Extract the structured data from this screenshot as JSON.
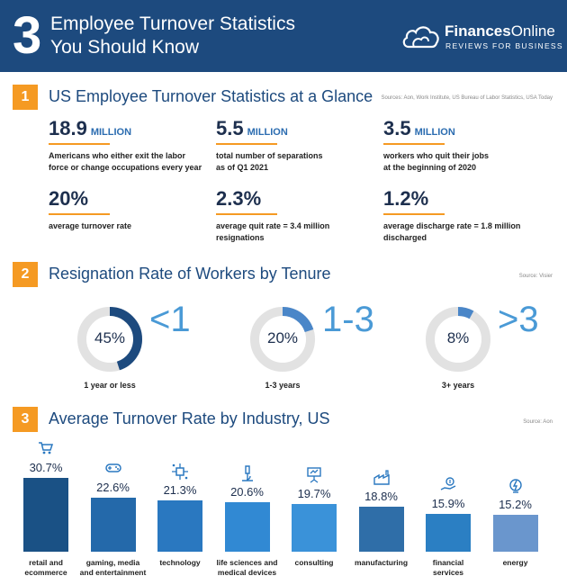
{
  "header": {
    "number": "3",
    "title_line1": "Employee Turnover Statistics",
    "title_line2": "You Should Know",
    "logo_name_bold": "Finances",
    "logo_name_rest": "Online",
    "logo_sub": "REVIEWS FOR BUSINESS"
  },
  "section1": {
    "number": "1",
    "title": "US Employee Turnover Statistics at a Glance",
    "source": "Sources: Aon, Work Institute, US Bureau of Labor Statistics, USA Today",
    "stats": [
      {
        "big": "18.9",
        "unit": "MILLION",
        "desc1": "Americans who either exit the labor",
        "desc2": "force or change occupations every year"
      },
      {
        "big": "5.5",
        "unit": "MILLION",
        "desc1": "total number of separations",
        "desc2": "as of Q1 2021"
      },
      {
        "big": "3.5",
        "unit": "MILLION",
        "desc1": "workers who quit their jobs",
        "desc2": "at the beginning of 2020"
      },
      {
        "big": "20%",
        "unit": "",
        "desc1": "average turnover rate",
        "desc2": ""
      },
      {
        "big": "2.3%",
        "unit": "",
        "desc1": "average quit rate = 3.4 million",
        "desc2": "resignations"
      },
      {
        "big": "1.2%",
        "unit": "",
        "desc1": "average discharge rate = 1.8 million",
        "desc2": "discharged"
      }
    ]
  },
  "section2": {
    "number": "2",
    "title": "Resignation Rate of Workers by Tenure",
    "source": "Source: Visier",
    "donuts": [
      {
        "pct": "45%",
        "value": 0.45,
        "big": "<1",
        "label": "1 year or less"
      },
      {
        "pct": "20%",
        "value": 0.2,
        "big": "1-3",
        "label": "1-3 years"
      },
      {
        "pct": "8%",
        "value": 0.08,
        "big": ">3",
        "label": "3+ years"
      }
    ],
    "colors": {
      "track": "#e2e2e2",
      "arc": "#1d4a7e",
      "arc_light": "#4a86c8"
    }
  },
  "section3": {
    "number": "3",
    "title": "Average Turnover Rate by Industry, US",
    "source": "Source: Aon"
  },
  "chart_data": {
    "type": "bar",
    "title": "Average Turnover Rate by Industry, US",
    "categories": [
      [
        "retail and",
        "ecommerce"
      ],
      [
        "gaming, media",
        "and entertainment"
      ],
      [
        "technology",
        ""
      ],
      [
        "life sciences and",
        "medical devices"
      ],
      [
        "consulting",
        ""
      ],
      [
        "manufacturing",
        ""
      ],
      [
        "financial",
        "services"
      ],
      [
        "energy",
        ""
      ]
    ],
    "values": [
      30.7,
      22.6,
      21.3,
      20.6,
      19.7,
      18.8,
      15.9,
      15.2
    ],
    "value_labels": [
      "30.7%",
      "22.6%",
      "21.3%",
      "20.6%",
      "19.7%",
      "18.8%",
      "15.9%",
      "15.2%"
    ],
    "icons": [
      "cart-icon",
      "gamepad-icon",
      "circuit-icon",
      "microscope-icon",
      "presentation-icon",
      "factory-icon",
      "money-hand-icon",
      "energy-icon"
    ],
    "colors": [
      "#1a5185",
      "#2469aa",
      "#2a78c0",
      "#3189d3",
      "#3a92d9",
      "#2f6ea8",
      "#2b7fc3",
      "#6a96cd"
    ],
    "ylim": [
      0,
      35
    ]
  }
}
